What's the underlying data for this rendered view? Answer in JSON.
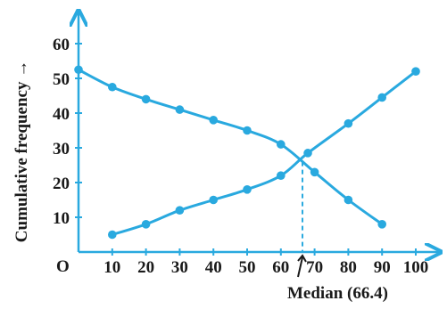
{
  "chart_data": {
    "type": "line",
    "title": "",
    "xlabel": "",
    "ylabel": "Cumulative frequency →",
    "origin_label": "O",
    "x_ticks": [
      "10",
      "20",
      "30",
      "40",
      "50",
      "60",
      "70",
      "80",
      "90",
      "100"
    ],
    "y_ticks": [
      "10",
      "20",
      "30",
      "40",
      "50",
      "60"
    ],
    "xlim": [
      0,
      100
    ],
    "ylim": [
      0,
      60
    ],
    "grid": false,
    "legend": "none",
    "series_color": "#29a9df",
    "series": [
      {
        "x": [
          10,
          20,
          30,
          40,
          50,
          60,
          68,
          80,
          90,
          100
        ],
        "values": [
          5,
          8,
          12,
          15,
          18,
          22,
          28.5,
          37,
          44.5,
          52
        ]
      },
      {
        "x": [
          0,
          10,
          20,
          30,
          40,
          50,
          60,
          70,
          80,
          90
        ],
        "values": [
          52.5,
          47.5,
          44,
          41,
          38,
          35,
          31,
          23,
          15,
          8
        ]
      }
    ],
    "annotations": [
      {
        "text": "Median (66.4)",
        "x": 66.4,
        "y": 26
      }
    ]
  }
}
